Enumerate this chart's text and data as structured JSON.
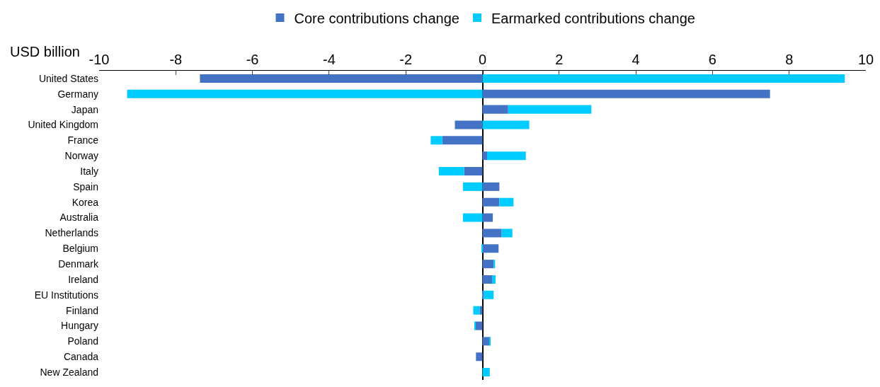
{
  "chart_data": {
    "type": "bar",
    "orientation": "horizontal",
    "stacked": true,
    "xlabel": "USD billion",
    "legend": "top",
    "categories": [
      "United States",
      "Germany",
      "Japan",
      "United Kingdom",
      "France",
      "Norway",
      "Italy",
      "Spain",
      "Korea",
      "Australia",
      "Netherlands",
      "Belgium",
      "Denmark",
      "Ireland",
      "EU Institutions",
      "Finland",
      "Hungary",
      "Poland",
      "Canada",
      "New Zealand"
    ],
    "xlim": [
      -10,
      10
    ],
    "xticks": [
      -10,
      -8,
      -6,
      -4,
      -2,
      0,
      2,
      4,
      6,
      8,
      10
    ],
    "series": [
      {
        "name": "Core contributions change",
        "color": "#4472c4",
        "values": [
          -7.37,
          7.5,
          0.67,
          -0.72,
          -1.05,
          0.12,
          -0.48,
          0.44,
          0.44,
          0.27,
          0.5,
          0.42,
          0.29,
          0.25,
          0.03,
          -0.07,
          -0.18,
          0.19,
          -0.17,
          0.0
        ]
      },
      {
        "name": "Earmarked contributions change",
        "color": "#00ccff",
        "values": [
          9.45,
          -9.27,
          2.17,
          1.22,
          -0.3,
          1.01,
          -0.66,
          -0.51,
          0.37,
          -0.51,
          0.28,
          -0.02,
          0.04,
          0.09,
          0.26,
          -0.17,
          -0.03,
          0.02,
          0.0,
          0.19
        ]
      }
    ]
  }
}
